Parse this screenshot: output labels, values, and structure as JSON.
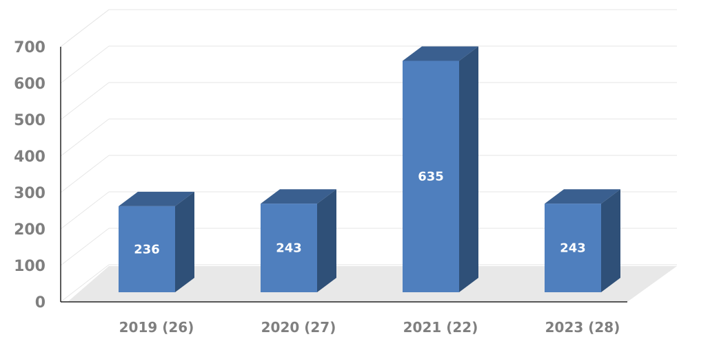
{
  "chart_data": {
    "type": "bar",
    "categories": [
      "2019 (26)",
      "2020 (27)",
      "2021 (22)",
      "2023 (28)"
    ],
    "values": [
      236,
      243,
      635,
      243
    ],
    "data_labels": [
      "236",
      "243",
      "635",
      "243"
    ],
    "y_ticks": [
      "0",
      "100",
      "200",
      "300",
      "400",
      "500",
      "600",
      "700"
    ],
    "ylim": [
      0,
      700
    ],
    "title": "",
    "xlabel": "",
    "ylabel": "",
    "grid": true,
    "style": "3d-column"
  },
  "colors": {
    "bar_front": "#4f7fbe",
    "bar_side": "#2f5078",
    "bar_top": "#3a5f8f",
    "floor": "#e8e8e8",
    "grid": "#e6e6e6",
    "axis": "#222222",
    "tick_text": "#7f7f7f",
    "data_label": "#ffffff"
  }
}
